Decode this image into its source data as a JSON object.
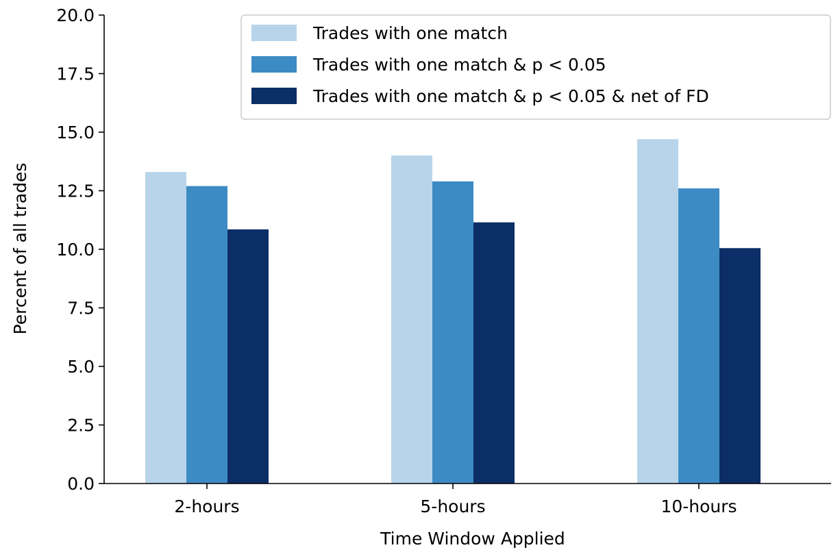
{
  "chart_data": {
    "type": "bar",
    "title": "",
    "xlabel": "Time Window Applied",
    "ylabel": "Percent of all trades",
    "categories": [
      "2-hours",
      "5-hours",
      "10-hours"
    ],
    "series": [
      {
        "name": "Trades with one match",
        "color": "#b7d4ea",
        "values": [
          13.3,
          14.0,
          14.7
        ]
      },
      {
        "name": "Trades with one match & p < 0.05",
        "color": "#3d8bc4",
        "values": [
          12.7,
          12.9,
          12.6
        ]
      },
      {
        "name": "Trades with one match & p < 0.05 & net of FD",
        "color": "#0b2e67",
        "values": [
          10.85,
          11.15,
          10.05
        ]
      }
    ],
    "ylim": [
      0,
      20
    ],
    "yticks": [
      "0.0",
      "2.5",
      "5.0",
      "7.5",
      "10.0",
      "12.5",
      "15.0",
      "17.5",
      "20.0"
    ],
    "grid": false,
    "legend_position": "top-right"
  }
}
